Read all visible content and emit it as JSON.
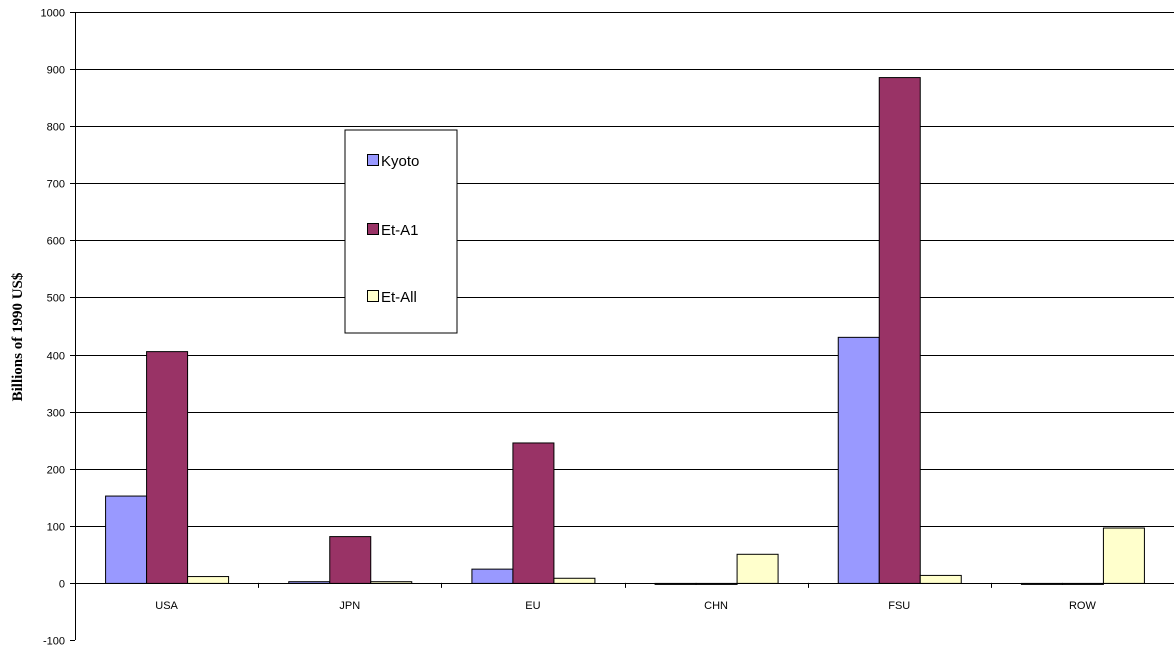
{
  "chart_data": {
    "type": "bar",
    "title": "",
    "xlabel": "",
    "ylabel": "Billions of 1990 US$",
    "ylim": [
      -100,
      1000
    ],
    "yticks": [
      -100,
      0,
      100,
      200,
      300,
      400,
      500,
      600,
      700,
      800,
      900,
      1000
    ],
    "grid": true,
    "legend_position": "center-left",
    "categories": [
      "USA",
      "JPN",
      "EU",
      "CHN",
      "FSU",
      "ROW"
    ],
    "series": [
      {
        "name": "Kyoto",
        "color": "#9999ff",
        "values": [
          153,
          3,
          25,
          0,
          431,
          0
        ]
      },
      {
        "name": "Et-A1",
        "color": "#993366",
        "values": [
          406,
          82,
          246,
          0,
          886,
          0
        ]
      },
      {
        "name": "Et-All",
        "color": "#ffffcc",
        "values": [
          12,
          3,
          9,
          51,
          14,
          97
        ]
      }
    ]
  }
}
